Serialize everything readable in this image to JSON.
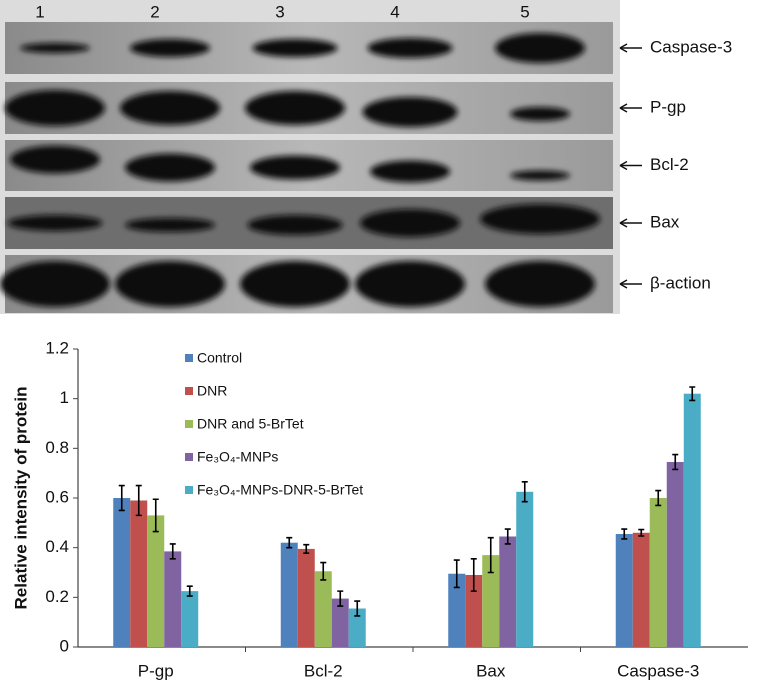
{
  "blot": {
    "lanes": [
      "1",
      "2",
      "3",
      "4",
      "5"
    ],
    "proteins": [
      "Caspase-3",
      "P-gp",
      "Bcl-2",
      "Bax",
      "β-action"
    ]
  },
  "chart_data": {
    "type": "bar",
    "y_label": "Relative intensity of protein",
    "categories": [
      "P-gp",
      "Bcl-2",
      "Bax",
      "Caspase-3"
    ],
    "series": [
      {
        "name": "Control",
        "color": "#4f81bd",
        "values": [
          0.6,
          0.42,
          0.295,
          0.455
        ],
        "errors": [
          0.05,
          0.02,
          0.055,
          0.02
        ]
      },
      {
        "name": "DNR",
        "color": "#c0504d",
        "values": [
          0.59,
          0.395,
          0.29,
          0.46
        ],
        "errors": [
          0.06,
          0.017,
          0.065,
          0.013
        ]
      },
      {
        "name": "DNR and 5-BrTet",
        "color": "#9bbb59",
        "values": [
          0.53,
          0.305,
          0.37,
          0.6
        ],
        "errors": [
          0.065,
          0.035,
          0.07,
          0.03
        ]
      },
      {
        "name": "Fe₃O₄-MNPs",
        "color": "#8064a2",
        "values": [
          0.385,
          0.195,
          0.445,
          0.745
        ],
        "errors": [
          0.03,
          0.03,
          0.03,
          0.03
        ]
      },
      {
        "name": "Fe₃O₄-MNPs-DNR-5-BrTet",
        "color": "#4bacc6",
        "values": [
          0.225,
          0.155,
          0.625,
          1.02
        ],
        "errors": [
          0.02,
          0.03,
          0.04,
          0.027
        ]
      }
    ],
    "ylim": [
      0,
      1.2
    ],
    "yticks": [
      0,
      0.2,
      0.4,
      0.6,
      0.8,
      1,
      1.2
    ],
    "grid": false
  }
}
